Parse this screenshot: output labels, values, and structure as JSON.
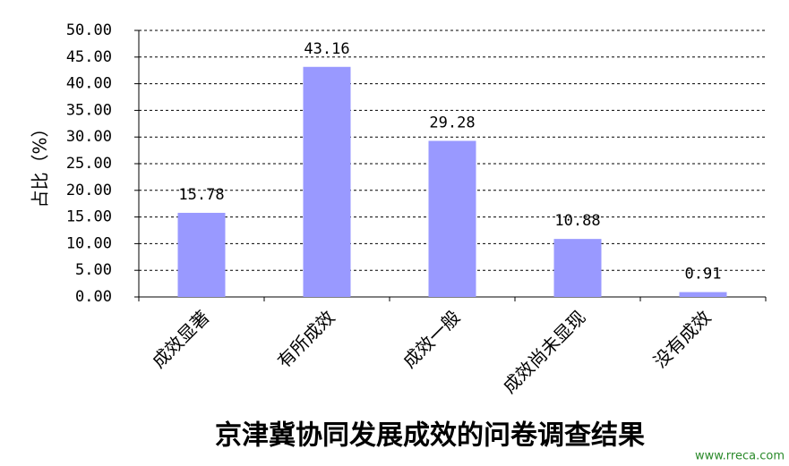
{
  "chart_data": {
    "type": "bar",
    "title": "京津冀协同发展成效的问卷调查结果",
    "y_label": "占比（%）",
    "watermark": "www.rreca.com",
    "categories": [
      "成效显著",
      "有所成效",
      "成效一般",
      "成效尚未显现",
      "没有成效"
    ],
    "values": [
      15.78,
      43.16,
      29.28,
      10.88,
      0.91
    ],
    "color": "#9999ff",
    "ylim": [
      0,
      50
    ],
    "yticks": [
      {
        "value": 0,
        "label": "0.00"
      },
      {
        "value": 5,
        "label": "5.00"
      },
      {
        "value": 10,
        "label": "10.00"
      },
      {
        "value": 15,
        "label": "15.00"
      },
      {
        "value": 20,
        "label": "20.00"
      },
      {
        "value": 25,
        "label": "25.00"
      },
      {
        "value": 30,
        "label": "30.00"
      },
      {
        "value": 35,
        "label": "35.00"
      },
      {
        "value": 40,
        "label": "40.00"
      },
      {
        "value": 45,
        "label": "45.00"
      },
      {
        "value": 50,
        "label": "50.00"
      }
    ],
    "grid": true
  }
}
